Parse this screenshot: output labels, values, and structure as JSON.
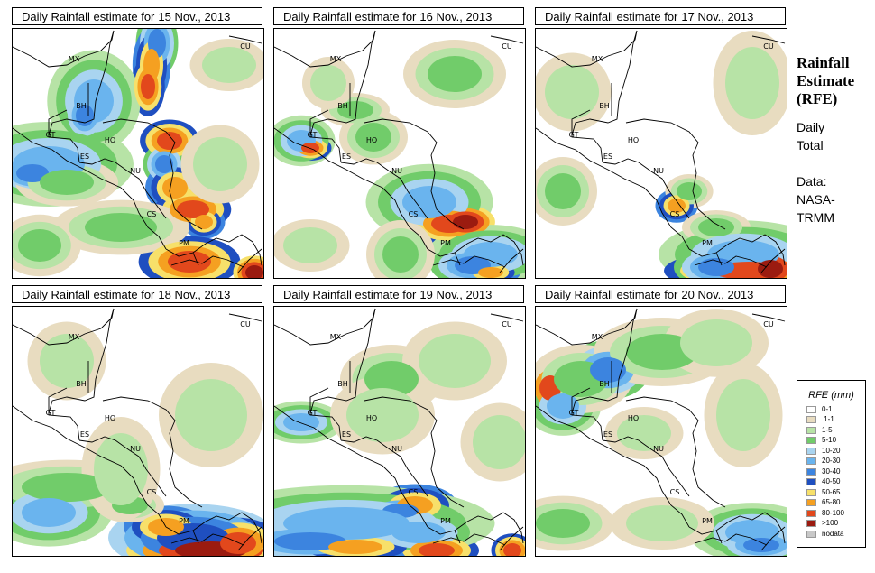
{
  "panels": [
    {
      "title_prefix": "Daily Rainfall estimate for",
      "date": "15 Nov., 2013",
      "scene": "s15"
    },
    {
      "title_prefix": "Daily Rainfall estimate for",
      "date": "16 Nov., 2013",
      "scene": "s16"
    },
    {
      "title_prefix": "Daily Rainfall estimate for",
      "date": "17 Nov., 2013",
      "scene": "s17"
    },
    {
      "title_prefix": "Daily Rainfall estimate for",
      "date": "18 Nov., 2013",
      "scene": "s18"
    },
    {
      "title_prefix": "Daily Rainfall estimate for",
      "date": "19 Nov., 2013",
      "scene": "s19"
    },
    {
      "title_prefix": "Daily Rainfall estimate for",
      "date": "20 Nov., 2013",
      "scene": "s20"
    }
  ],
  "country_labels": {
    "mx": "MX",
    "cu": "CU",
    "bh": "BH",
    "gt": "GT",
    "ho": "HO",
    "es": "ES",
    "nu": "NU",
    "cs": "CS",
    "pm": "PM"
  },
  "side": {
    "title_line1": "Rainfall",
    "title_line2": "Estimate",
    "title_line3": "(RFE)",
    "daily_line1": "Daily",
    "daily_line2": "Total",
    "data_line1": "Data:",
    "data_line2": "NASA-",
    "data_line3": "TRMM"
  },
  "legend": {
    "title": "RFE (mm)",
    "items": [
      {
        "label": "0-1",
        "color": "#ffffff"
      },
      {
        "label": ".1-1",
        "color": "#e8dcc0"
      },
      {
        "label": "1-5",
        "color": "#b7e3a6"
      },
      {
        "label": "5-10",
        "color": "#71cc6a"
      },
      {
        "label": "10-20",
        "color": "#a9d4f0"
      },
      {
        "label": "20-30",
        "color": "#6ab4ee"
      },
      {
        "label": "30-40",
        "color": "#3c84df"
      },
      {
        "label": "40-50",
        "color": "#1f4fc0"
      },
      {
        "label": "50-65",
        "color": "#f7e06a"
      },
      {
        "label": "65-80",
        "color": "#f5a021"
      },
      {
        "label": "80-100",
        "color": "#e2481c"
      },
      {
        "label": ">100",
        "color": "#9b1b10"
      },
      {
        "label": "nodata",
        "color": "#c8c8c8"
      }
    ]
  }
}
